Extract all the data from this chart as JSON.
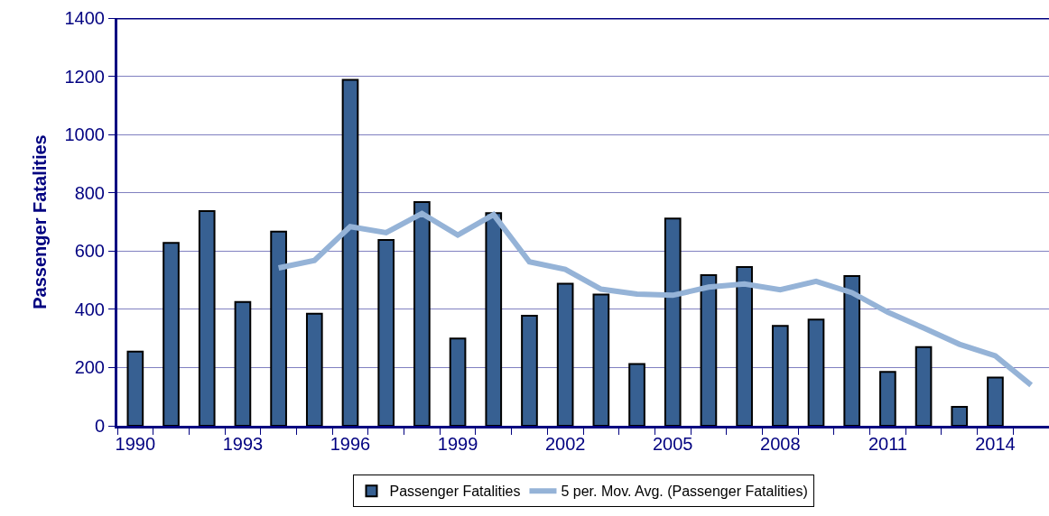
{
  "chart_data": {
    "type": "bar",
    "ylabel": "Passenger Fatalities",
    "categories": [
      "1990",
      null,
      null,
      "1993",
      null,
      null,
      "1996",
      null,
      null,
      "1999",
      null,
      null,
      "2002",
      null,
      null,
      "2005",
      null,
      null,
      "2008",
      null,
      null,
      "2011",
      null,
      null,
      "2014",
      null
    ],
    "series": [
      {
        "name": "Passenger Fatalities",
        "color": "#376092",
        "values": [
          255,
          628,
          737,
          425,
          667,
          385,
          1188,
          638,
          768,
          300,
          730,
          378,
          488,
          451,
          212,
          712,
          517,
          545,
          343,
          365,
          514,
          185,
          270,
          65,
          166,
          null
        ]
      },
      {
        "name": "5 per. Mov. Avg. (Passenger Fatalities)",
        "type": "line",
        "color": "#95b3d7",
        "values": [
          null,
          null,
          null,
          null,
          542,
          568,
          684,
          663,
          729,
          655,
          725,
          563,
          537,
          469,
          452,
          448,
          476,
          487,
          467,
          496,
          457,
          390,
          336,
          280,
          240,
          140
        ]
      }
    ],
    "ylim": [
      0,
      1400
    ],
    "yticks": [
      0,
      200,
      400,
      600,
      800,
      1000,
      1200,
      1400
    ],
    "grid": "y",
    "legend": "bottom",
    "marker": "none"
  }
}
